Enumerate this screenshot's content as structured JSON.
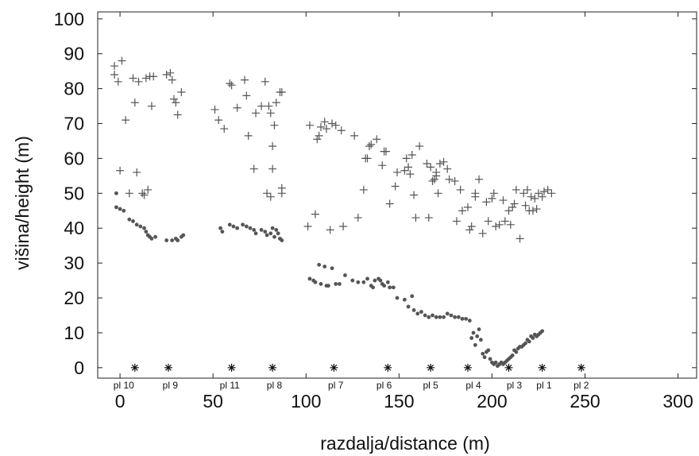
{
  "chart_data": {
    "type": "scatter",
    "xlabel": "razdalja/distance (m)",
    "ylabel": "višina/height (m)",
    "xlim": [
      -12,
      310
    ],
    "ylim": [
      -3,
      102
    ],
    "x_ticks": [
      "0",
      "50",
      "100",
      "150",
      "200",
      "250",
      "300"
    ],
    "y_ticks": [
      "0",
      "10",
      "20",
      "30",
      "40",
      "50",
      "60",
      "70",
      "80",
      "90",
      "100"
    ],
    "grid": false,
    "colors": {
      "plus": "#555555",
      "dot": "#555555",
      "star": "#111111"
    },
    "series": [
      {
        "marker": "plus",
        "points": [
          [
            -3,
            86.5
          ],
          [
            -3,
            84
          ],
          [
            -1,
            82
          ],
          [
            0,
            56.5
          ],
          [
            1,
            88
          ],
          [
            3,
            71
          ],
          [
            5,
            50
          ],
          [
            7,
            83
          ],
          [
            8,
            76
          ],
          [
            9,
            56
          ],
          [
            10,
            82
          ],
          [
            12,
            50
          ],
          [
            13,
            49.5
          ],
          [
            14,
            83
          ],
          [
            15,
            51
          ],
          [
            16,
            83.5
          ],
          [
            17,
            75
          ],
          [
            18,
            83.5
          ],
          [
            25,
            84
          ],
          [
            27,
            84.5
          ],
          [
            28,
            82.5
          ],
          [
            29,
            77
          ],
          [
            30,
            76
          ],
          [
            31,
            72.5
          ],
          [
            33,
            79
          ],
          [
            51,
            74
          ],
          [
            53,
            71
          ],
          [
            56,
            68.5
          ],
          [
            59,
            81.5
          ],
          [
            60,
            81
          ],
          [
            63,
            74.5
          ],
          [
            67,
            82.5
          ],
          [
            68,
            78
          ],
          [
            69,
            66.5
          ],
          [
            72,
            57
          ],
          [
            73,
            73
          ],
          [
            76,
            75
          ],
          [
            78,
            82
          ],
          [
            79,
            50
          ],
          [
            80,
            75
          ],
          [
            81,
            49
          ],
          [
            81,
            73
          ],
          [
            82,
            57
          ],
          [
            82,
            63.5
          ],
          [
            83,
            69.5
          ],
          [
            84,
            76
          ],
          [
            86,
            79
          ],
          [
            87,
            79
          ],
          [
            87,
            50
          ],
          [
            87,
            51.5
          ],
          [
            101,
            40.5
          ],
          [
            102,
            69.5
          ],
          [
            105,
            44
          ],
          [
            106,
            65.5
          ],
          [
            107,
            66.5
          ],
          [
            108,
            69
          ],
          [
            110,
            70.5
          ],
          [
            111,
            68.5
          ],
          [
            113,
            39.5
          ],
          [
            114,
            70
          ],
          [
            116,
            69.5
          ],
          [
            119,
            68
          ],
          [
            120,
            40.5
          ],
          [
            126,
            66.5
          ],
          [
            128,
            43
          ],
          [
            131,
            51
          ],
          [
            132,
            60
          ],
          [
            133,
            60
          ],
          [
            134,
            63.5
          ],
          [
            135,
            64
          ],
          [
            138,
            65.5
          ],
          [
            141,
            58
          ],
          [
            142,
            62
          ],
          [
            143,
            62
          ],
          [
            145,
            47
          ],
          [
            148,
            52
          ],
          [
            149,
            56
          ],
          [
            153,
            56.5
          ],
          [
            154,
            60
          ],
          [
            155,
            57.5
          ],
          [
            156,
            55.5
          ],
          [
            157,
            61
          ],
          [
            158,
            49.5
          ],
          [
            159,
            43
          ],
          [
            161,
            63.5
          ],
          [
            165,
            58.5
          ],
          [
            166,
            43
          ],
          [
            167,
            57.5
          ],
          [
            168,
            53.5
          ],
          [
            169,
            54
          ],
          [
            170,
            56
          ],
          [
            170,
            55
          ],
          [
            171,
            50
          ],
          [
            172,
            58.5
          ],
          [
            174,
            59
          ],
          [
            176,
            57
          ],
          [
            177,
            54
          ],
          [
            180,
            53.5
          ],
          [
            181,
            42
          ],
          [
            183,
            51
          ],
          [
            184,
            45
          ],
          [
            187,
            46
          ],
          [
            188,
            39.5
          ],
          [
            189,
            40.5
          ],
          [
            191,
            49
          ],
          [
            191,
            50
          ],
          [
            193,
            54
          ],
          [
            195,
            38.5
          ],
          [
            197,
            47.5
          ],
          [
            198,
            42
          ],
          [
            200,
            48.5
          ],
          [
            201,
            50
          ],
          [
            202,
            40.5
          ],
          [
            204,
            41
          ],
          [
            206,
            48
          ],
          [
            207,
            42
          ],
          [
            209,
            45
          ],
          [
            210,
            41
          ],
          [
            211,
            46
          ],
          [
            212,
            47
          ],
          [
            213,
            51
          ],
          [
            215,
            37
          ],
          [
            217,
            50
          ],
          [
            218,
            46.5
          ],
          [
            219,
            51
          ],
          [
            220,
            45
          ],
          [
            221,
            49
          ],
          [
            222,
            45
          ],
          [
            223,
            48.5
          ],
          [
            224,
            45.5
          ],
          [
            225,
            50
          ],
          [
            227,
            49
          ],
          [
            228,
            50.5
          ],
          [
            230,
            51
          ],
          [
            232,
            50
          ]
        ]
      },
      {
        "marker": "dot",
        "points": [
          [
            -2,
            50
          ],
          [
            -2,
            46
          ],
          [
            0,
            45.5
          ],
          [
            2,
            45
          ],
          [
            5,
            42.5
          ],
          [
            7,
            42
          ],
          [
            9,
            41
          ],
          [
            11,
            40.5
          ],
          [
            13,
            40
          ],
          [
            14,
            39
          ],
          [
            15,
            38
          ],
          [
            16,
            37.5
          ],
          [
            17,
            37
          ],
          [
            19,
            37.5
          ],
          [
            25,
            36.5
          ],
          [
            28,
            36.5
          ],
          [
            30,
            37
          ],
          [
            31,
            36.5
          ],
          [
            33,
            37.5
          ],
          [
            34,
            38
          ],
          [
            54,
            40
          ],
          [
            55,
            39
          ],
          [
            59,
            41
          ],
          [
            61,
            40.5
          ],
          [
            63,
            40
          ],
          [
            66,
            41
          ],
          [
            68,
            40.5
          ],
          [
            70,
            40
          ],
          [
            72,
            39.5
          ],
          [
            73,
            38.5
          ],
          [
            76,
            39.5
          ],
          [
            78,
            39
          ],
          [
            79,
            38
          ],
          [
            81,
            38.5
          ],
          [
            82,
            40
          ],
          [
            83,
            37.5
          ],
          [
            84,
            39.5
          ],
          [
            85,
            38.5
          ],
          [
            86,
            37
          ],
          [
            87,
            36.5
          ],
          [
            102,
            25.5
          ],
          [
            104,
            25
          ],
          [
            105,
            24.5
          ],
          [
            107,
            29.5
          ],
          [
            108,
            24
          ],
          [
            110,
            29
          ],
          [
            111,
            23.5
          ],
          [
            112,
            23.5
          ],
          [
            114,
            28.5
          ],
          [
            116,
            24
          ],
          [
            118,
            24
          ],
          [
            121,
            26.5
          ],
          [
            125,
            25
          ],
          [
            128,
            24.5
          ],
          [
            131,
            24.5
          ],
          [
            133,
            25.5
          ],
          [
            135,
            23.5
          ],
          [
            136,
            23
          ],
          [
            137,
            25
          ],
          [
            139,
            25.5
          ],
          [
            140,
            25
          ],
          [
            141,
            24
          ],
          [
            142,
            23.5
          ],
          [
            144,
            24.5
          ],
          [
            145,
            23
          ],
          [
            147,
            23
          ],
          [
            149,
            20
          ],
          [
            153,
            19.5
          ],
          [
            155,
            17.5
          ],
          [
            157,
            20.5
          ],
          [
            158,
            16.5
          ],
          [
            160,
            15.5
          ],
          [
            162,
            16
          ],
          [
            164,
            15
          ],
          [
            166,
            14.5
          ],
          [
            168,
            15
          ],
          [
            170,
            14.5
          ],
          [
            172,
            14.5
          ],
          [
            174,
            14.5
          ],
          [
            176,
            15.5
          ],
          [
            178,
            15
          ],
          [
            180,
            14.5
          ],
          [
            182,
            14.5
          ],
          [
            184,
            14
          ],
          [
            186,
            14
          ],
          [
            188,
            13.5
          ],
          [
            189,
            8.5
          ],
          [
            190,
            10
          ],
          [
            191,
            6.5
          ],
          [
            192,
            9
          ],
          [
            193,
            11
          ],
          [
            194,
            8
          ],
          [
            195,
            4
          ],
          [
            196,
            3
          ],
          [
            197,
            4.5
          ],
          [
            198,
            5
          ],
          [
            199,
            2.5
          ],
          [
            200,
            1.5
          ],
          [
            201,
            1
          ],
          [
            202,
            1.5
          ],
          [
            203,
            0.5
          ],
          [
            204,
            1
          ],
          [
            205,
            1.5
          ],
          [
            206,
            1
          ],
          [
            207,
            1.5
          ],
          [
            208,
            2
          ],
          [
            209,
            2.5
          ],
          [
            210,
            3
          ],
          [
            211,
            3.5
          ],
          [
            212,
            5
          ],
          [
            213,
            4.5
          ],
          [
            214,
            5.5
          ],
          [
            215,
            6
          ],
          [
            216,
            6
          ],
          [
            217,
            6.5
          ],
          [
            218,
            7
          ],
          [
            219,
            8
          ],
          [
            220,
            7.5
          ],
          [
            221,
            9
          ],
          [
            222,
            8.5
          ],
          [
            223,
            9.5
          ],
          [
            224,
            9
          ],
          [
            225,
            9.5
          ],
          [
            226,
            10
          ],
          [
            227,
            10.5
          ]
        ]
      },
      {
        "marker": "star",
        "points": [
          [
            8,
            0
          ],
          [
            26,
            0
          ],
          [
            60,
            0
          ],
          [
            82,
            0
          ],
          [
            115,
            0
          ],
          [
            144,
            0
          ],
          [
            167,
            0
          ],
          [
            187,
            0
          ],
          [
            209,
            0
          ],
          [
            227,
            0
          ],
          [
            248,
            0
          ]
        ]
      }
    ],
    "labels": [
      {
        "text": "pl 10",
        "x": 2
      },
      {
        "text": "pl 9",
        "x": 27
      },
      {
        "text": "pl 11",
        "x": 59
      },
      {
        "text": "pl 8",
        "x": 83
      },
      {
        "text": "pl 7",
        "x": 116
      },
      {
        "text": "pl 6",
        "x": 142
      },
      {
        "text": "pl 5",
        "x": 167
      },
      {
        "text": "pl 4",
        "x": 190
      },
      {
        "text": "pl 3",
        "x": 212
      },
      {
        "text": "pl 1",
        "x": 228
      },
      {
        "text": "pl 2",
        "x": 248
      }
    ]
  }
}
